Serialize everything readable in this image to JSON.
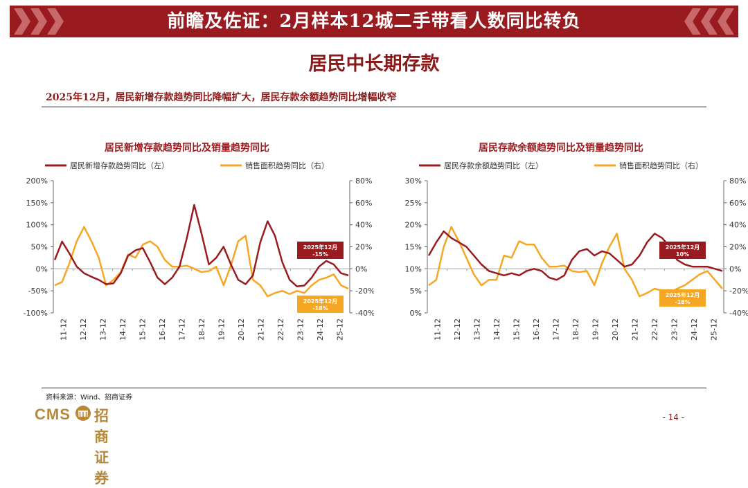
{
  "header": {
    "title": "前瞻及佐证：2月样本12城二手带看人数同比转负"
  },
  "section_title": "居民中长期存款",
  "summary": "2025年12月，居民新增存款趋势同比降幅扩大，居民存款余额趋势同比增幅收窄",
  "footer": {
    "source": "资料来源：Wind、招商证券",
    "logo_en": "CMS",
    "logo_cn": "招商证券",
    "page": "- 14 -"
  },
  "colors": {
    "dark_red": "#9a1b1f",
    "orange": "#f5a623",
    "gold": "#b8893a"
  },
  "chart_data": [
    {
      "type": "line",
      "title": "居民新增存款趋势同比及销量趋势同比",
      "x_ticks": [
        "11-12",
        "12-12",
        "13-12",
        "14-12",
        "15-12",
        "16-12",
        "17-12",
        "18-12",
        "19-12",
        "20-12",
        "21-12",
        "22-12",
        "23-12",
        "24-12",
        "25-12"
      ],
      "y_left": {
        "min": -100,
        "max": 200,
        "ticks": [
          "-100%",
          "-50%",
          "0%",
          "50%",
          "100%",
          "150%",
          "200%"
        ]
      },
      "y_right": {
        "min": -40,
        "max": 80,
        "ticks": [
          "-40%",
          "-20%",
          "0%",
          "20%",
          "40%",
          "60%",
          "80%"
        ]
      },
      "series": [
        {
          "name": "居民新增存款趋势同比（左）",
          "axis": "left",
          "color": "#9a1b1f",
          "values": [
            20,
            62,
            35,
            5,
            -10,
            -18,
            -25,
            -35,
            -33,
            -10,
            30,
            42,
            47,
            15,
            -20,
            -35,
            -20,
            5,
            70,
            145,
            80,
            10,
            25,
            50,
            10,
            -25,
            -35,
            -15,
            60,
            108,
            75,
            15,
            -25,
            -40,
            -38,
            -20,
            5,
            18,
            10,
            -10,
            -15
          ]
        },
        {
          "name": "销售面积趋势同比（右）",
          "axis": "right",
          "color": "#f5a623",
          "values": [
            -15,
            -12,
            5,
            25,
            38,
            25,
            10,
            -15,
            -10,
            -3,
            13,
            10,
            22,
            25,
            20,
            8,
            2,
            2,
            3,
            0,
            -3,
            -2,
            2,
            -15,
            3,
            25,
            30,
            -10,
            -15,
            -25,
            -22,
            -20,
            -23,
            -20,
            -22,
            -15,
            -10,
            -8,
            -5,
            -15,
            -18
          ]
        }
      ],
      "annotations": [
        {
          "lines": [
            "2025年12月",
            "-15%"
          ],
          "style": "dark_red"
        },
        {
          "lines": [
            "2025年12月",
            "-18%"
          ],
          "style": "orange"
        }
      ]
    },
    {
      "type": "line",
      "title": "居民存款余额趋势同比及销量趋势同比",
      "x_ticks": [
        "11-12",
        "12-12",
        "13-12",
        "14-12",
        "15-12",
        "16-12",
        "17-12",
        "18-12",
        "19-12",
        "20-12",
        "21-12",
        "22-12",
        "23-12",
        "24-12",
        "25-12"
      ],
      "y_left": {
        "min": 0,
        "max": 30,
        "ticks": [
          "0%",
          "5%",
          "10%",
          "15%",
          "20%",
          "25%",
          "30%"
        ]
      },
      "y_right": {
        "min": -40,
        "max": 80,
        "ticks": [
          "-40%",
          "-20%",
          "0%",
          "20%",
          "40%",
          "60%",
          "80%"
        ]
      },
      "series": [
        {
          "name": "居民存款余额趋势同比（左）",
          "axis": "left",
          "color": "#9a1b1f",
          "values": [
            13,
            16,
            18.5,
            17,
            16,
            15,
            13,
            11,
            9.5,
            9,
            8.5,
            9,
            8.5,
            9.5,
            10,
            9.5,
            8,
            7.5,
            8.5,
            12,
            14,
            14.5,
            13,
            14,
            13.5,
            12,
            10.5,
            11,
            13,
            16,
            18,
            17,
            15,
            12,
            11,
            10.5,
            10.5,
            10.5,
            10,
            9.5
          ]
        },
        {
          "name": "销售面积趋势同比（右）",
          "axis": "right",
          "color": "#f5a623",
          "values": [
            -15,
            -10,
            20,
            38,
            25,
            10,
            -5,
            -15,
            -10,
            -10,
            12,
            10,
            25,
            22,
            22,
            10,
            2,
            2,
            3,
            -2,
            -3,
            -2,
            -15,
            5,
            20,
            32,
            0,
            -10,
            -25,
            -22,
            -18,
            -20,
            -22,
            -18,
            -15,
            -10,
            -5,
            -2,
            -10,
            -18
          ]
        }
      ],
      "annotations": [
        {
          "lines": [
            "2025年12月",
            "10%"
          ],
          "style": "dark_red"
        },
        {
          "lines": [
            "2025年12月",
            "-18%"
          ],
          "style": "orange"
        }
      ]
    }
  ]
}
